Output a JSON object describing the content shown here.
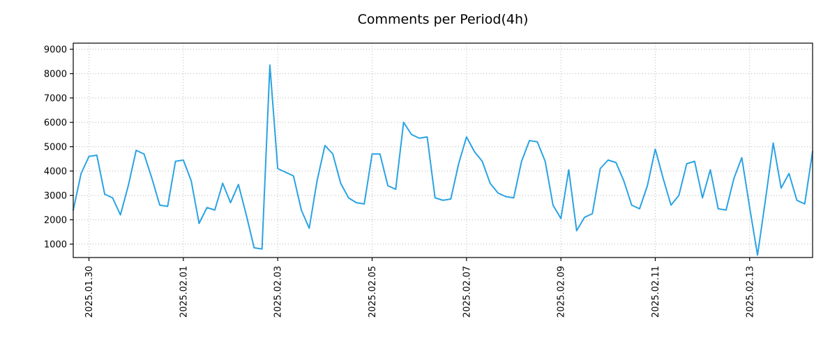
{
  "chart_data": {
    "type": "line",
    "title": "Comments per Period(4h)",
    "series_name": "comments-per-4h",
    "x_step_hours": 4,
    "values": [
      2400,
      3900,
      4600,
      4650,
      3050,
      2900,
      2200,
      3400,
      4850,
      4700,
      3700,
      2600,
      2550,
      4400,
      4450,
      3600,
      1850,
      2500,
      2400,
      3500,
      2700,
      3450,
      2200,
      850,
      800,
      8350,
      4100,
      3950,
      3800,
      2400,
      1650,
      3600,
      5050,
      4700,
      3500,
      2900,
      2700,
      2650,
      4700,
      4700,
      3400,
      3250,
      6000,
      5500,
      5350,
      5400,
      2900,
      2800,
      2850,
      4300,
      5400,
      4800,
      4400,
      3500,
      3100,
      2950,
      2900,
      4400,
      5250,
      5200,
      4400,
      2600,
      2050,
      4050,
      1550,
      2100,
      2250,
      4100,
      4450,
      4350,
      3600,
      2600,
      2450,
      3400,
      4900,
      3700,
      2600,
      3000,
      4300,
      4400,
      2900,
      4050,
      2450,
      2400,
      3700,
      4550,
      2500,
      550,
      2800,
      5150,
      3300,
      3900,
      2800,
      2650,
      4800
    ],
    "x_ticks": [
      {
        "label": "2025.01.30",
        "index": 2
      },
      {
        "label": "2025.02.01",
        "index": 14
      },
      {
        "label": "2025.02.03",
        "index": 26
      },
      {
        "label": "2025.02.05",
        "index": 38
      },
      {
        "label": "2025.02.07",
        "index": 50
      },
      {
        "label": "2025.02.09",
        "index": 62
      },
      {
        "label": "2025.02.11",
        "index": 74
      },
      {
        "label": "2025.02.13",
        "index": 86
      }
    ],
    "y_ticks": [
      1000,
      2000,
      3000,
      4000,
      5000,
      6000,
      7000,
      8000,
      9000
    ],
    "ylim": [
      450,
      9250
    ],
    "grid": true,
    "grid_style": "dotted",
    "legend_position": "none",
    "line_color": "#29a3e3",
    "grid_color": "#b0b0b0",
    "axis_color": "#000000"
  }
}
